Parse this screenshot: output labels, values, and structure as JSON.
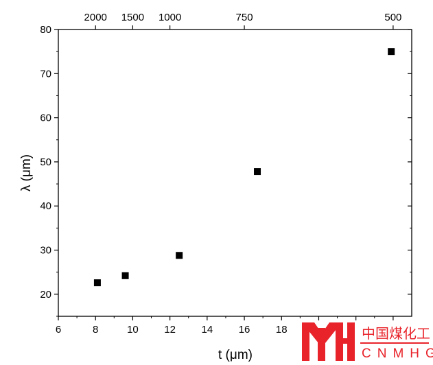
{
  "chart_data": {
    "type": "scatter",
    "xlabel": "t (μm)",
    "ylabel": "λ (μm)",
    "xlim": [
      6,
      25
    ],
    "ylim": [
      15,
      80
    ],
    "x_ticks": [
      "6",
      "8",
      "10",
      "12",
      "14",
      "16",
      "18"
    ],
    "y_ticks": [
      "20",
      "30",
      "40",
      "50",
      "60",
      "70",
      "80"
    ],
    "top_axis": {
      "labels": [
        "2000",
        "1500",
        "1000",
        "750",
        "500"
      ],
      "positions": [
        8,
        10,
        12,
        16,
        24
      ]
    },
    "series": [
      {
        "marker": "square",
        "color": "#000000",
        "x": [
          8.1,
          9.6,
          12.5,
          16.7,
          23.9
        ],
        "y": [
          22.6,
          24.2,
          28.8,
          47.8,
          75.0
        ]
      }
    ],
    "grid": false,
    "legend": "none"
  },
  "watermark": {
    "text_cn": "中国煤化工",
    "text_en": "CNMHG",
    "color": "#e8232a"
  }
}
